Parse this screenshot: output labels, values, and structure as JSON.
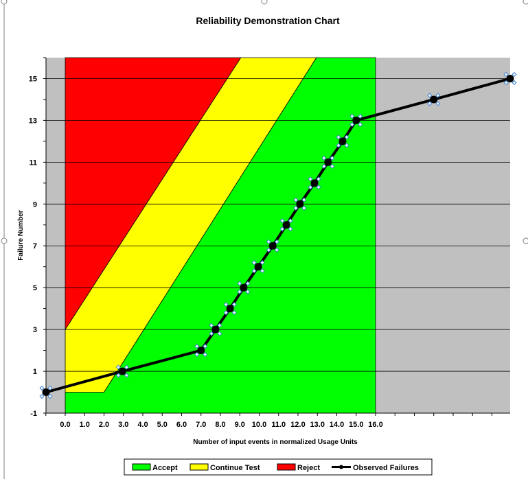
{
  "chart_data": {
    "type": "line",
    "title": "Reliability Demonstration Chart",
    "xlabel": "Number of input events in normalized Usage Units",
    "ylabel": "Failure Number",
    "xlim": [
      -1,
      22
    ],
    "ylim": [
      -1,
      16
    ],
    "x_tick_labels": [
      "0.0",
      "1.0",
      "2.0",
      "3.0",
      "4.0",
      "5.0",
      "6.0",
      "7.0",
      "8.0",
      "9.0",
      "10.0",
      "11.0",
      "12.0",
      "13.0",
      "14.0",
      "15.0",
      "16.0"
    ],
    "x_tick_values": [
      0,
      1,
      2,
      3,
      4,
      5,
      6,
      7,
      8,
      9,
      10,
      11,
      12,
      13,
      14,
      15,
      16
    ],
    "y_tick_labels": [
      "-1",
      "1",
      "3",
      "5",
      "7",
      "9",
      "11",
      "13",
      "15"
    ],
    "y_tick_values": [
      -1,
      1,
      3,
      5,
      7,
      9,
      11,
      13,
      15
    ],
    "grid": "horizontal",
    "regions": [
      {
        "name": "Accept",
        "color": "#00ff00",
        "polygon": [
          [
            0,
            -1
          ],
          [
            16,
            -1
          ],
          [
            16,
            16
          ],
          [
            12.95,
            16
          ],
          [
            2.0,
            0
          ],
          [
            0,
            0
          ]
        ]
      },
      {
        "name": "Continue Test",
        "color": "#ffff00",
        "polygon": [
          [
            0,
            0
          ],
          [
            2.0,
            0
          ],
          [
            12.95,
            16
          ],
          [
            9.05,
            16
          ],
          [
            0,
            3
          ]
        ]
      },
      {
        "name": "Reject",
        "color": "#ff0000",
        "polygon": [
          [
            0,
            3
          ],
          [
            9.05,
            16
          ],
          [
            0,
            16
          ]
        ]
      }
    ],
    "out_of_range_color": "#c0c0c0",
    "series": [
      {
        "name": "Observed Failures",
        "color": "#000000",
        "x": [
          -1.0,
          2.95,
          7.0,
          7.75,
          8.5,
          9.2,
          9.95,
          10.7,
          11.4,
          12.1,
          12.85,
          13.55,
          14.3,
          15.0,
          19.0,
          23.0
        ],
        "y": [
          0,
          1,
          2,
          3,
          4,
          5,
          6,
          7,
          8,
          9,
          10,
          11,
          12,
          13,
          14,
          15
        ]
      }
    ],
    "legend": {
      "position": "bottom",
      "items": [
        {
          "label": "Accept",
          "color": "#00ff00",
          "kind": "swatch"
        },
        {
          "label": "Continue Test",
          "color": "#ffff00",
          "kind": "swatch"
        },
        {
          "label": "Reject",
          "color": "#ff0000",
          "kind": "swatch"
        },
        {
          "label": "Observed Failures",
          "color": "#000000",
          "kind": "line"
        }
      ]
    }
  }
}
